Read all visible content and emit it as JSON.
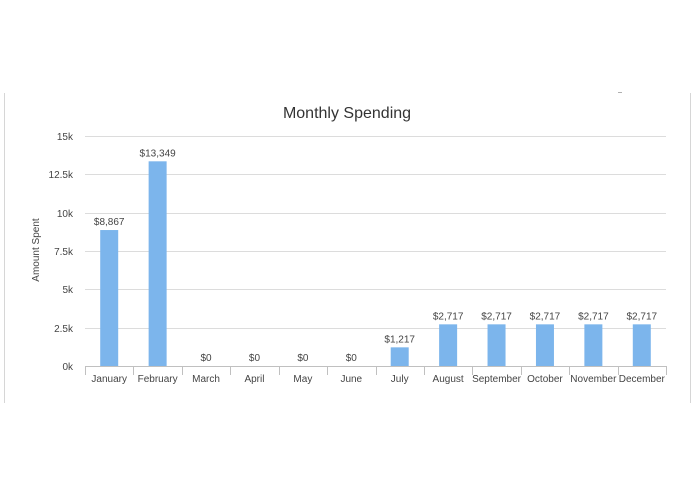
{
  "chart_data": {
    "type": "bar",
    "title": "Monthly Spending",
    "xlabel": "",
    "ylabel": "Amount Spent",
    "ylim": [
      0,
      15000
    ],
    "yticks": [
      0,
      2500,
      5000,
      7500,
      10000,
      12500,
      15000
    ],
    "ytick_labels": [
      "0k",
      "2.5k",
      "5k",
      "7.5k",
      "10k",
      "12.5k",
      "15k"
    ],
    "categories": [
      "January",
      "February",
      "March",
      "April",
      "May",
      "June",
      "July",
      "August",
      "September",
      "October",
      "November",
      "December"
    ],
    "values": [
      8867,
      13349,
      0,
      0,
      0,
      0,
      1217,
      2717,
      2717,
      2717,
      2717,
      2717
    ],
    "data_labels": [
      "$8,867",
      "$13,349",
      "$0",
      "$0",
      "$0",
      "$0",
      "$1,217",
      "$2,717",
      "$2,717",
      "$2,717",
      "$2,717",
      "$2,717"
    ],
    "bar_color": "#7cb5ec",
    "grid": true,
    "legend": false
  }
}
